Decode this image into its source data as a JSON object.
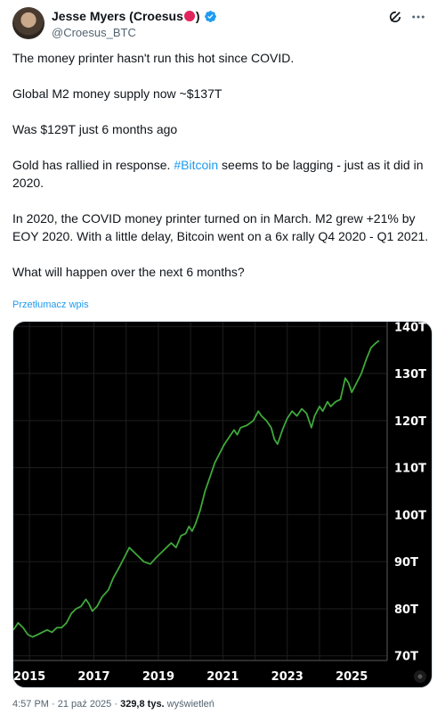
{
  "author": {
    "name": "Jesse Myers (Croesus",
    "name_suffix": ")",
    "handle": "@Croesus_BTC"
  },
  "tweet": {
    "line1": "The money printer hasn't run this hot since COVID.",
    "line2": "Global M2 money supply now ~$137T",
    "line3": "Was $129T just 6 months ago",
    "line4_a": "Gold has rallied in response.  ",
    "line4_hashtag": "#Bitcoin",
    "line4_b": " seems to be lagging - just as it did in 2020.",
    "line5": "In 2020, the COVID money printer turned on in March.  M2 grew +21% by EOY 2020.  With a little delay, Bitcoin went on a 6x rally Q4 2020 - Q1 2021.",
    "line6": "What will happen over the next 6 months?"
  },
  "translate_link": "Przetłumacz wpis",
  "footer": {
    "time": "4:57 PM · 21 paź 2025 · ",
    "views": "329,8 tys.",
    "views_label": " wyświetleń"
  },
  "colors": {
    "line": "#3fa83a",
    "background": "#000000",
    "link": "#1d9bf0"
  },
  "chart_data": {
    "type": "line",
    "title": "",
    "xlabel": "",
    "ylabel": "",
    "x_tick_labels": [
      "2015",
      "2017",
      "2019",
      "2021",
      "2023",
      "2025"
    ],
    "y_tick_labels": [
      "70T",
      "80T",
      "90T",
      "100T",
      "110T",
      "120T",
      "130T",
      "140T"
    ],
    "xlim": [
      2014.5,
      2026.1
    ],
    "ylim": [
      69,
      141
    ],
    "grid": true,
    "series": [
      {
        "values": [
          [
            2014.5,
            75.5
          ],
          [
            2014.65,
            77
          ],
          [
            2014.8,
            76
          ],
          [
            2014.95,
            74.5
          ],
          [
            2015.1,
            74
          ],
          [
            2015.25,
            74.5
          ],
          [
            2015.4,
            75
          ],
          [
            2015.55,
            75.5
          ],
          [
            2015.7,
            75
          ],
          [
            2015.85,
            76
          ],
          [
            2016.0,
            76
          ],
          [
            2016.15,
            77
          ],
          [
            2016.3,
            79
          ],
          [
            2016.45,
            80
          ],
          [
            2016.6,
            80.5
          ],
          [
            2016.75,
            82
          ],
          [
            2016.85,
            81
          ],
          [
            2016.95,
            79.5
          ],
          [
            2017.1,
            80.5
          ],
          [
            2017.25,
            82.5
          ],
          [
            2017.45,
            84
          ],
          [
            2017.6,
            86.5
          ],
          [
            2017.8,
            89
          ],
          [
            2017.95,
            91
          ],
          [
            2018.1,
            93
          ],
          [
            2018.25,
            92
          ],
          [
            2018.4,
            91
          ],
          [
            2018.55,
            90
          ],
          [
            2018.75,
            89.5
          ],
          [
            2018.95,
            91
          ],
          [
            2019.1,
            92
          ],
          [
            2019.25,
            93
          ],
          [
            2019.4,
            94
          ],
          [
            2019.55,
            93
          ],
          [
            2019.7,
            95.5
          ],
          [
            2019.85,
            96
          ],
          [
            2019.95,
            97.5
          ],
          [
            2020.05,
            96.5
          ],
          [
            2020.15,
            98
          ],
          [
            2020.3,
            101
          ],
          [
            2020.45,
            105
          ],
          [
            2020.6,
            108
          ],
          [
            2020.75,
            111
          ],
          [
            2020.9,
            113
          ],
          [
            2021.05,
            115
          ],
          [
            2021.2,
            116.5
          ],
          [
            2021.35,
            118
          ],
          [
            2021.45,
            117
          ],
          [
            2021.55,
            118.5
          ],
          [
            2021.75,
            119
          ],
          [
            2021.95,
            120
          ],
          [
            2022.1,
            122
          ],
          [
            2022.2,
            121
          ],
          [
            2022.35,
            120
          ],
          [
            2022.5,
            118.5
          ],
          [
            2022.6,
            116
          ],
          [
            2022.7,
            115
          ],
          [
            2022.85,
            118
          ],
          [
            2023.0,
            120.5
          ],
          [
            2023.15,
            122
          ],
          [
            2023.3,
            121
          ],
          [
            2023.45,
            122.5
          ],
          [
            2023.6,
            121.5
          ],
          [
            2023.75,
            118.5
          ],
          [
            2023.85,
            121
          ],
          [
            2024.0,
            123
          ],
          [
            2024.1,
            122
          ],
          [
            2024.25,
            124
          ],
          [
            2024.35,
            123
          ],
          [
            2024.5,
            124
          ],
          [
            2024.65,
            124.5
          ],
          [
            2024.8,
            129
          ],
          [
            2024.9,
            128
          ],
          [
            2025.0,
            126
          ],
          [
            2025.15,
            128
          ],
          [
            2025.3,
            130
          ],
          [
            2025.45,
            133
          ],
          [
            2025.6,
            135.5
          ],
          [
            2025.75,
            136.5
          ],
          [
            2025.85,
            137
          ]
        ]
      }
    ]
  }
}
